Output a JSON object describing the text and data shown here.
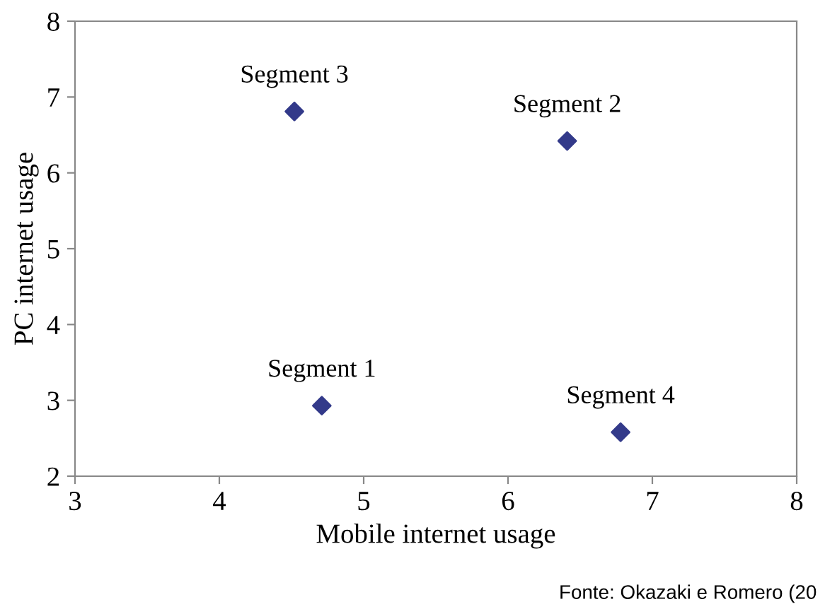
{
  "chart_data": {
    "type": "scatter",
    "xlabel": "Mobile internet usage",
    "ylabel": "PC internet usage",
    "x": [
      4.71,
      6.41,
      4.52,
      6.78
    ],
    "series": [
      {
        "color": "#333a8a",
        "values": [
          2.93,
          6.42,
          6.81,
          2.58
        ]
      }
    ],
    "marker": "diamond",
    "xlim": [
      3,
      8
    ],
    "ylim": [
      2,
      8
    ],
    "xticks": [
      3,
      4,
      5,
      6,
      7,
      8
    ],
    "yticks": [
      2,
      3,
      4,
      5,
      6,
      7,
      8
    ],
    "grid": false,
    "legend": false,
    "annotations": [
      {
        "text": "Segment 1",
        "x": 4.71,
        "y": 2.93
      },
      {
        "text": "Segment 2",
        "x": 6.41,
        "y": 6.42
      },
      {
        "text": "Segment 3",
        "x": 4.52,
        "y": 6.81
      },
      {
        "text": "Segment 4",
        "x": 6.78,
        "y": 2.58
      },
      "Fonte: Okazaki e Romero (20"
    ]
  }
}
